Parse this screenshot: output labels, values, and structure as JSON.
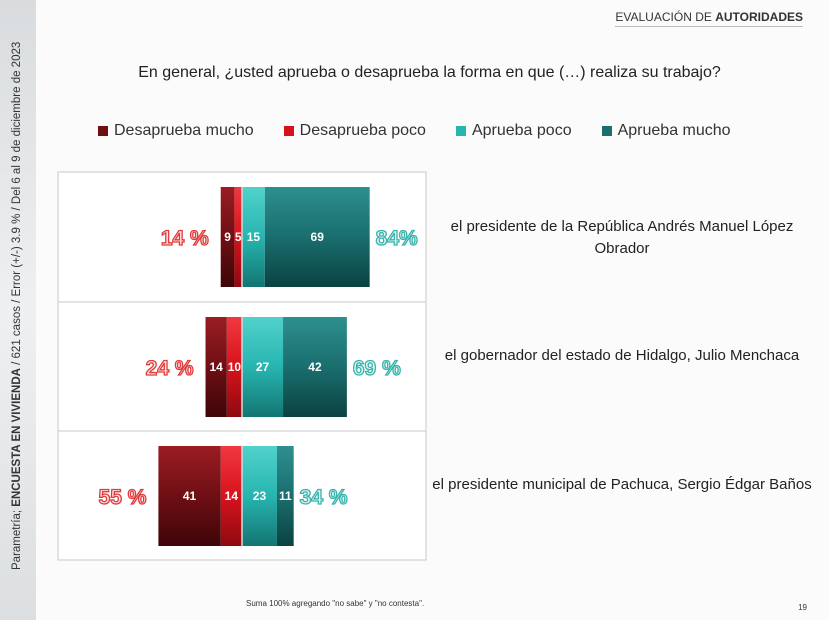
{
  "side_note": {
    "prefix": "Parametría; ",
    "bold": "ENCUESTA EN VIVIENDA",
    "rest": " / 621 casos / Error (+/-) 3.9 % / Del 6 al 9 de diciembre de 2023"
  },
  "header": {
    "prefix": "EVALUACIÓN DE ",
    "bold": "AUTORIDADES"
  },
  "question": "En general, ¿usted aprueba o desaprueba la forma en que (…) realiza su trabajo?",
  "colors": {
    "desaprueba_mucho": "#6e0f14",
    "desaprueba_poco": "#d8121c",
    "aprueba_poco": "#27b5b0",
    "aprueba_mucho": "#1a6e6e",
    "neg_total": "#e23a3a",
    "pos_total": "#39b3ad"
  },
  "chart_data": {
    "type": "bar",
    "orientation": "horizontal-diverging",
    "series": [
      {
        "name": "Desaprueba mucho",
        "values": [
          9,
          14,
          41
        ]
      },
      {
        "name": "Desaprueba poco",
        "values": [
          5,
          10,
          14
        ]
      },
      {
        "name": "Aprueba poco",
        "values": [
          15,
          27,
          23
        ]
      },
      {
        "name": "Aprueba mucho",
        "values": [
          69,
          42,
          11
        ]
      }
    ],
    "categories": [
      "el presidente de la República Andrés Manuel López Obrador",
      "el gobernador del estado de Hidalgo, Julio Menchaca",
      "el presidente municipal de Pachuca, Sergio Édgar Baños"
    ],
    "neg_totals": [
      "14 %",
      "24 %",
      "55 %"
    ],
    "pos_totals": [
      "84%",
      "69 %",
      "34 %"
    ],
    "legend_position": "top"
  },
  "footnote": "Suma 100% agregando \"no sabe\" y \"no contesta\".",
  "page_number": "19"
}
